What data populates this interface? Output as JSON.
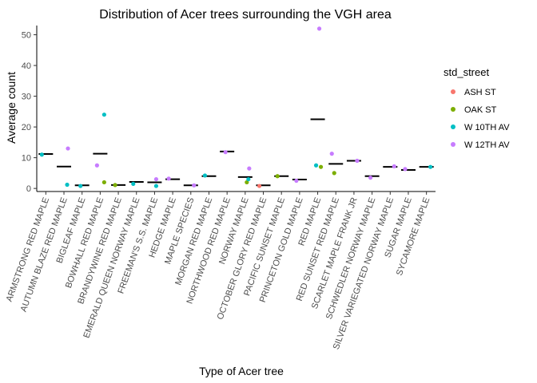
{
  "chart_data": {
    "type": "scatter",
    "title": "Distribution of Acer trees surrounding the VGH area",
    "xlabel": "Type of Acer tree",
    "ylabel": "Average count",
    "ylim": [
      -1,
      53
    ],
    "yticks": [
      0,
      10,
      20,
      30,
      40,
      50
    ],
    "grid": false,
    "legend": {
      "title": "std_street",
      "placement": "right"
    },
    "categories": [
      "ARMSTRONG RED MAPLE",
      "AUTUMN BLAZE RED MAPLE",
      "BIGLEAF MAPLE",
      "BOWHALL RED MAPLE",
      "BRANDYWINE RED MAPLE",
      "EMERALD QUEEN NORWAY MAPLE",
      "FREEMAN'S S.S. MAPLE",
      "HEDGE MAPLE",
      "MAPLE SPECIES",
      "MORGAN RED MAPLE",
      "NORTHWOOD RED MAPLE",
      "NORWAY MAPLE",
      "OCTOBER GLORY RED MAPLE",
      "PACIFIC SUNSET MAPLE",
      "PRINCETON GOLD MAPLE",
      "RED MAPLE",
      "RED SUNSET RED MAPLE",
      "SCARLET MAPLE FRANK JR",
      "SCHWEDLER NORWAY MAPLE",
      "SILVER VARIEGATED NORWAY MAPLE",
      "SUGAR MAPLE",
      "SYCAMORE MAPLE"
    ],
    "means": [
      11.2,
      7.1,
      1.0,
      11.3,
      1.1,
      2.1,
      2.0,
      3.0,
      1.0,
      4.0,
      12.0,
      3.7,
      1.0,
      4.0,
      2.9,
      22.5,
      8.0,
      9.0,
      4.0,
      7.0,
      6.0,
      7.0
    ],
    "series": [
      {
        "name": "ASH ST",
        "color": "#F8766D",
        "points": [
          {
            "x": "OCTOBER GLORY RED MAPLE",
            "y": 0.8
          }
        ]
      },
      {
        "name": "OAK ST",
        "color": "#7CAE00",
        "points": [
          {
            "x": "BOWHALL RED MAPLE",
            "y": 2.0
          },
          {
            "x": "BRANDYWINE RED MAPLE",
            "y": 1.1
          },
          {
            "x": "NORWAY MAPLE",
            "y": 2.0
          },
          {
            "x": "PACIFIC SUNSET MAPLE",
            "y": 4.0
          },
          {
            "x": "RED MAPLE",
            "y": 7.0
          },
          {
            "x": "RED SUNSET RED MAPLE",
            "y": 5.0
          }
        ]
      },
      {
        "name": "W 10TH AV",
        "color": "#00BFC4",
        "points": [
          {
            "x": "ARMSTRONG RED MAPLE",
            "y": 11.0
          },
          {
            "x": "AUTUMN BLAZE RED MAPLE",
            "y": 1.2
          },
          {
            "x": "BIGLEAF MAPLE",
            "y": 0.8
          },
          {
            "x": "BOWHALL RED MAPLE",
            "y": 24.0
          },
          {
            "x": "EMERALD QUEEN NORWAY MAPLE",
            "y": 1.5
          },
          {
            "x": "FREEMAN'S S.S. MAPLE",
            "y": 0.8
          },
          {
            "x": "MORGAN RED MAPLE",
            "y": 4.2
          },
          {
            "x": "NORWAY MAPLE",
            "y": 3.0
          },
          {
            "x": "RED MAPLE",
            "y": 7.5
          },
          {
            "x": "SYCAMORE MAPLE",
            "y": 7.0
          }
        ]
      },
      {
        "name": "W 12TH AV",
        "color": "#C77CFF",
        "points": [
          {
            "x": "AUTUMN BLAZE RED MAPLE",
            "y": 13.0
          },
          {
            "x": "BOWHALL RED MAPLE",
            "y": 7.5
          },
          {
            "x": "FREEMAN'S S.S. MAPLE",
            "y": 3.0
          },
          {
            "x": "HEDGE MAPLE",
            "y": 3.2
          },
          {
            "x": "MAPLE SPECIES",
            "y": 1.0
          },
          {
            "x": "NORTHWOOD RED MAPLE",
            "y": 11.8
          },
          {
            "x": "NORWAY MAPLE",
            "y": 6.5
          },
          {
            "x": "PRINCETON GOLD MAPLE",
            "y": 2.5
          },
          {
            "x": "RED MAPLE",
            "y": 52.0
          },
          {
            "x": "RED SUNSET RED MAPLE",
            "y": 11.3
          },
          {
            "x": "SCARLET MAPLE FRANK JR",
            "y": 9.0
          },
          {
            "x": "SCHWEDLER NORWAY MAPLE",
            "y": 3.5
          },
          {
            "x": "SILVER VARIEGATED NORWAY MAPLE",
            "y": 7.2
          },
          {
            "x": "SUGAR MAPLE",
            "y": 6.3
          }
        ]
      }
    ]
  }
}
